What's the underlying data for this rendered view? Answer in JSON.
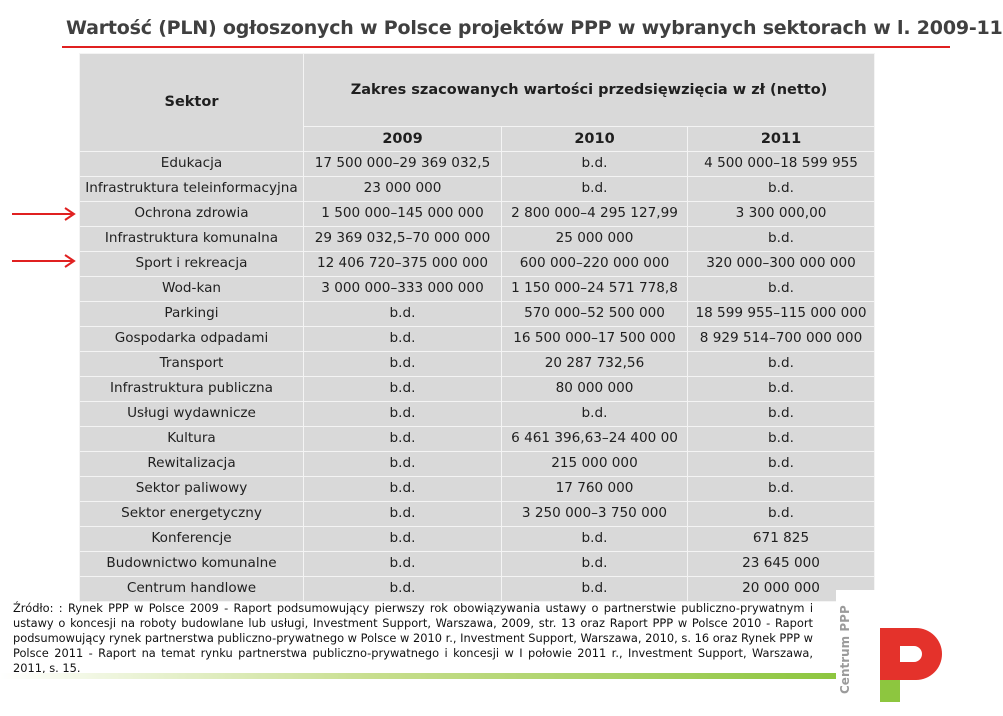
{
  "title": "Wartość (PLN) ogłoszonych w Polsce projektów PPP w wybranych sektorach w l. 2009-11",
  "table": {
    "header_sector": "Sektor",
    "header_range": "Zakres szacowanych wartości przedsięwzięcia w zł (netto)",
    "years": [
      "2009",
      "2010",
      "2011"
    ],
    "rows": [
      {
        "sector": "Edukacja",
        "y2009": "17 500 000–29 369 032,5",
        "y2010": "b.d.",
        "y2011": "4 500 000–18 599 955"
      },
      {
        "sector": "Infrastruktura teleinformacyjna",
        "y2009": "23 000 000",
        "y2010": "b.d.",
        "y2011": "b.d."
      },
      {
        "sector": "Ochrona zdrowia",
        "y2009": "1 500 000–145 000 000",
        "y2010": "2 800 000–4 295 127,99",
        "y2011": "3 300 000,00"
      },
      {
        "sector": "Infrastruktura komunalna",
        "y2009": "29 369 032,5–70 000 000",
        "y2010": "25 000 000",
        "y2011": "b.d."
      },
      {
        "sector": "Sport i rekreacja",
        "y2009": "12 406 720–375 000 000",
        "y2010": "600 000–220 000 000",
        "y2011": "320 000–300 000 000"
      },
      {
        "sector": "Wod-kan",
        "y2009": "3 000 000–333 000 000",
        "y2010": "1 150 000–24 571 778,8",
        "y2011": "b.d."
      },
      {
        "sector": "Parkingi",
        "y2009": "b.d.",
        "y2010": "570 000–52 500 000",
        "y2011": "18 599 955–115 000 000"
      },
      {
        "sector": "Gospodarka odpadami",
        "y2009": "b.d.",
        "y2010": "16 500 000–17 500 000",
        "y2011": "8 929 514–700 000 000"
      },
      {
        "sector": "Transport",
        "y2009": "b.d.",
        "y2010": "20 287 732,56",
        "y2011": "b.d."
      },
      {
        "sector": "Infrastruktura publiczna",
        "y2009": "b.d.",
        "y2010": "80 000 000",
        "y2011": "b.d."
      },
      {
        "sector": "Usługi wydawnicze",
        "y2009": "b.d.",
        "y2010": "b.d.",
        "y2011": "b.d."
      },
      {
        "sector": "Kultura",
        "y2009": "b.d.",
        "y2010": "6 461 396,63–24 400 00",
        "y2011": "b.d."
      },
      {
        "sector": "Rewitalizacja",
        "y2009": "b.d.",
        "y2010": "215 000 000",
        "y2011": "b.d."
      },
      {
        "sector": "Sektor paliwowy",
        "y2009": "b.d.",
        "y2010": "17 760 000",
        "y2011": "b.d."
      },
      {
        "sector": "Sektor energetyczny",
        "y2009": "b.d.",
        "y2010": "3 250 000–3 750 000",
        "y2011": "b.d."
      },
      {
        "sector": "Konferencje",
        "y2009": "b.d.",
        "y2010": "b.d.",
        "y2011": "671 825"
      },
      {
        "sector": "Budownictwo komunalne",
        "y2009": "b.d.",
        "y2010": "b.d.",
        "y2011": "23 645 000"
      },
      {
        "sector": "Centrum handlowe",
        "y2009": "b.d.",
        "y2010": "b.d.",
        "y2011": "20 000 000"
      }
    ]
  },
  "source_text": "Źródło: : Rynek PPP w Polsce 2009 - Raport podsumowujący pierwszy rok obowiązywania ustawy o partnerstwie publiczno-prywatnym i ustawy o koncesji na roboty budowlane lub usługi, Investment Support, Warszawa, 2009, str. 13 oraz Raport PPP w Polsce 2010 - Raport podsumowujący rynek partnerstwa publiczno-prywatnego w Polsce w 2010 r., Investment Support, Warszawa, 2010, s. 16 oraz Rynek PPP w Polsce 2011 - Raport na temat rynku partnerstwa publiczno-prywatnego i koncesji w I połowie 2011 r., Investment Support, Warszawa, 2011, s. 15.",
  "logo": {
    "text": "Centrum PPP",
    "letter": "P"
  },
  "colors": {
    "title_rule": "#e02020",
    "arrow": "#e02020",
    "table_bg": "#d9d9d9",
    "logo_red": "#e4322b",
    "logo_green": "#8dc63f"
  },
  "icons": [
    "arrow-right-icon",
    "centrum-ppp-logo"
  ]
}
